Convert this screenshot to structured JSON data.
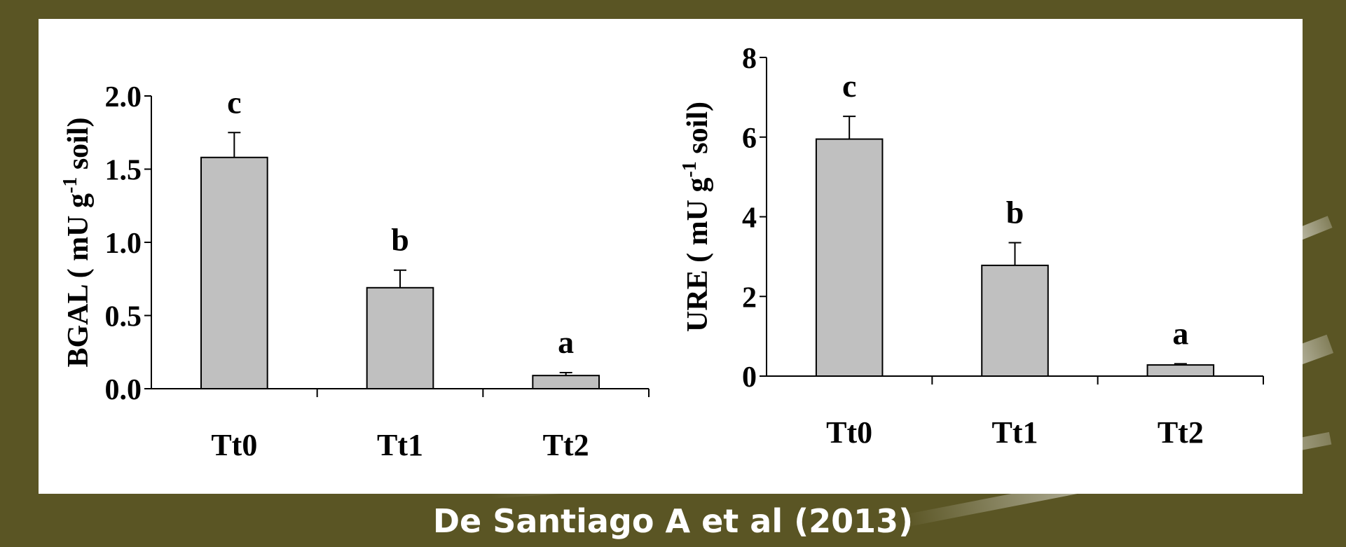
{
  "caption": "De Santiago A et al (2013)",
  "colors": {
    "background": "#5a5524",
    "bar_fill": "#c0c0c0",
    "bar_stroke": "#000000",
    "panel": "#ffffff"
  },
  "chart_data": [
    {
      "type": "bar",
      "title": "",
      "xlabel": "",
      "ylabel": "BGAL ( mU g-1 soil)",
      "ylabel_main": "BGAL ( mU g",
      "ylabel_sup": "-1",
      "ylabel_tail": " soil)",
      "categories": [
        "Tt0",
        "Tt1",
        "Tt2"
      ],
      "values": [
        1.58,
        0.69,
        0.09
      ],
      "errors": [
        0.17,
        0.12,
        0.02
      ],
      "letters": [
        "c",
        "b",
        "a"
      ],
      "ylim": [
        0,
        2.0
      ],
      "yticks": [
        0,
        0.5,
        1.0,
        1.5,
        2.0
      ],
      "ytick_labels": [
        "0.0",
        "0.5",
        "1.0",
        "1.5",
        "2.0"
      ],
      "grid": false
    },
    {
      "type": "bar",
      "title": "",
      "xlabel": "",
      "ylabel": "URE ( mU g-1 soil)",
      "ylabel_main": "URE ( mU g",
      "ylabel_sup": "-1",
      "ylabel_tail": " soil)",
      "categories": [
        "Tt0",
        "Tt1",
        "Tt2"
      ],
      "values": [
        5.95,
        2.78,
        0.28
      ],
      "errors": [
        0.57,
        0.57,
        0.03
      ],
      "letters": [
        "c",
        "b",
        "a"
      ],
      "ylim": [
        0,
        8
      ],
      "yticks": [
        0,
        2,
        4,
        6,
        8
      ],
      "ytick_labels": [
        "0",
        "2",
        "4",
        "6",
        "8"
      ],
      "grid": false
    }
  ]
}
